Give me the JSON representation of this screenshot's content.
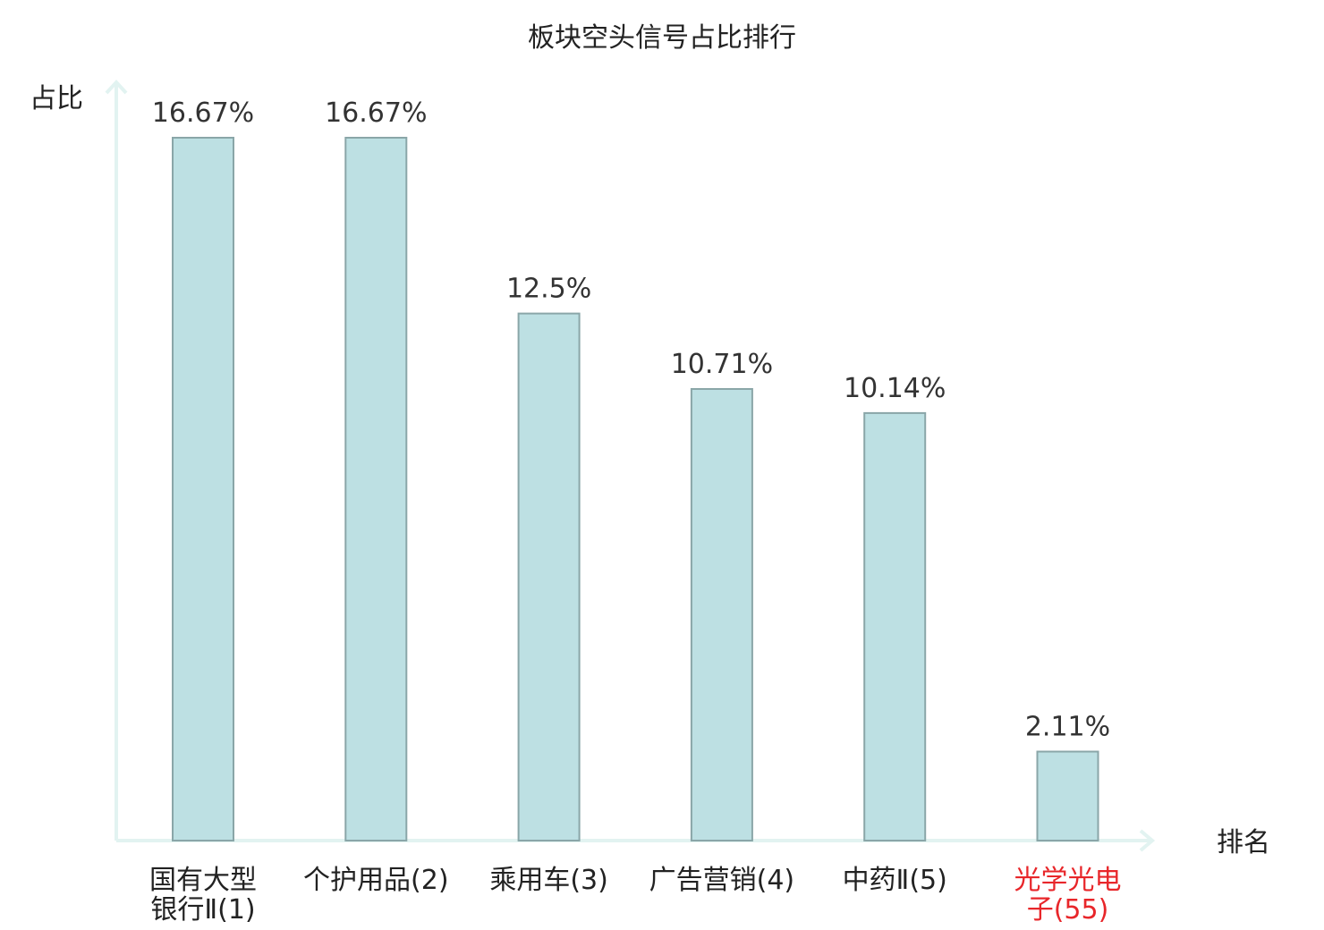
{
  "chart_data": {
    "type": "bar",
    "title": "板块空头信号占比排行",
    "ylabel": "占比",
    "xlabel": "排名",
    "categories": [
      {
        "name": "国有大型银行Ⅱ",
        "rank": "(1)",
        "lines": [
          "国有大型",
          "银行Ⅱ(1)"
        ],
        "highlight": false
      },
      {
        "name": "个护用品",
        "rank": "(2)",
        "lines": [
          "个护用品(2)"
        ],
        "highlight": false
      },
      {
        "name": "乘用车",
        "rank": "(3)",
        "lines": [
          "乘用车(3)"
        ],
        "highlight": false
      },
      {
        "name": "广告营销",
        "rank": "(4)",
        "lines": [
          "广告营销(4)"
        ],
        "highlight": false
      },
      {
        "name": "中药Ⅱ",
        "rank": "(5)",
        "lines": [
          "中药Ⅱ(5)"
        ],
        "highlight": false
      },
      {
        "name": "光学光电子",
        "rank": "(55)",
        "lines": [
          "光学光电",
          "子(55)"
        ],
        "highlight": true
      }
    ],
    "values": [
      16.67,
      16.67,
      12.5,
      10.71,
      10.14,
      2.11
    ],
    "value_labels": [
      "16.67%",
      "16.67%",
      "12.5%",
      "10.71%",
      "10.14%",
      "2.11%"
    ],
    "unit": "%",
    "ylim": [
      0,
      16.67
    ],
    "grid": false,
    "legend": "none",
    "colors": {
      "bar_fill": "#bde0e3",
      "bar_stroke": "#8aa6a8",
      "axis": "#e2f3f1",
      "highlight_label": "#e8262a"
    }
  }
}
